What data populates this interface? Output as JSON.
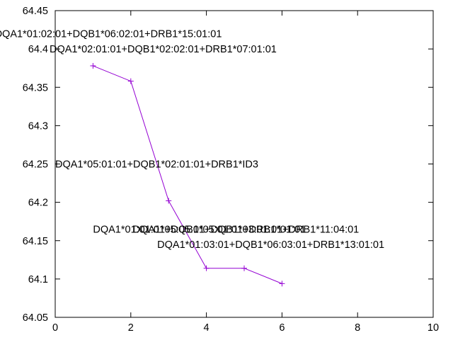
{
  "chart_data": {
    "type": "line",
    "xlim": [
      0,
      10
    ],
    "ylim": [
      64.05,
      64.45
    ],
    "x_ticks": [
      "0",
      "2",
      "4",
      "6",
      "8",
      "10"
    ],
    "y_ticks": [
      "64.05",
      "64.1",
      "64.15",
      "64.2",
      "64.25",
      "64.3",
      "64.35",
      "64.4",
      "64.45"
    ],
    "grid": false,
    "line_color": "#9400d3",
    "series": [
      {
        "x": [
          1,
          2,
          3,
          4,
          5,
          6
        ],
        "y": [
          64.378,
          64.358,
          64.202,
          64.114,
          64.114,
          64.094
        ]
      }
    ],
    "annotations": [
      {
        "text": "DQA1*01:02:01+DQB1*06:02:01+DRB1*15:01:01",
        "x": -1.6,
        "y": 64.42
      },
      {
        "text": "DQA1*02:01:01+DQB1*02:02:01+DRB1*07:01:01",
        "x": -0.15,
        "y": 64.4
      },
      {
        "text": "DQA1*05:01:01+DQB1*02:01:01+DRB1*ID3",
        "x": 0.0,
        "y": 64.25
      },
      {
        "text": "DQA1*01:01:01+DQB1*05:01:01+DRB1*01:01",
        "x": 1.0,
        "y": 64.165
      },
      {
        "text": "DQA1*05:05:01+DQB1*03:01:01+DRB1*11:04:01",
        "x": 2.05,
        "y": 64.165
      },
      {
        "text": "DQA1*01:03:01+DQB1*06:03:01+DRB1*13:01:01",
        "x": 2.7,
        "y": 64.145
      }
    ]
  }
}
